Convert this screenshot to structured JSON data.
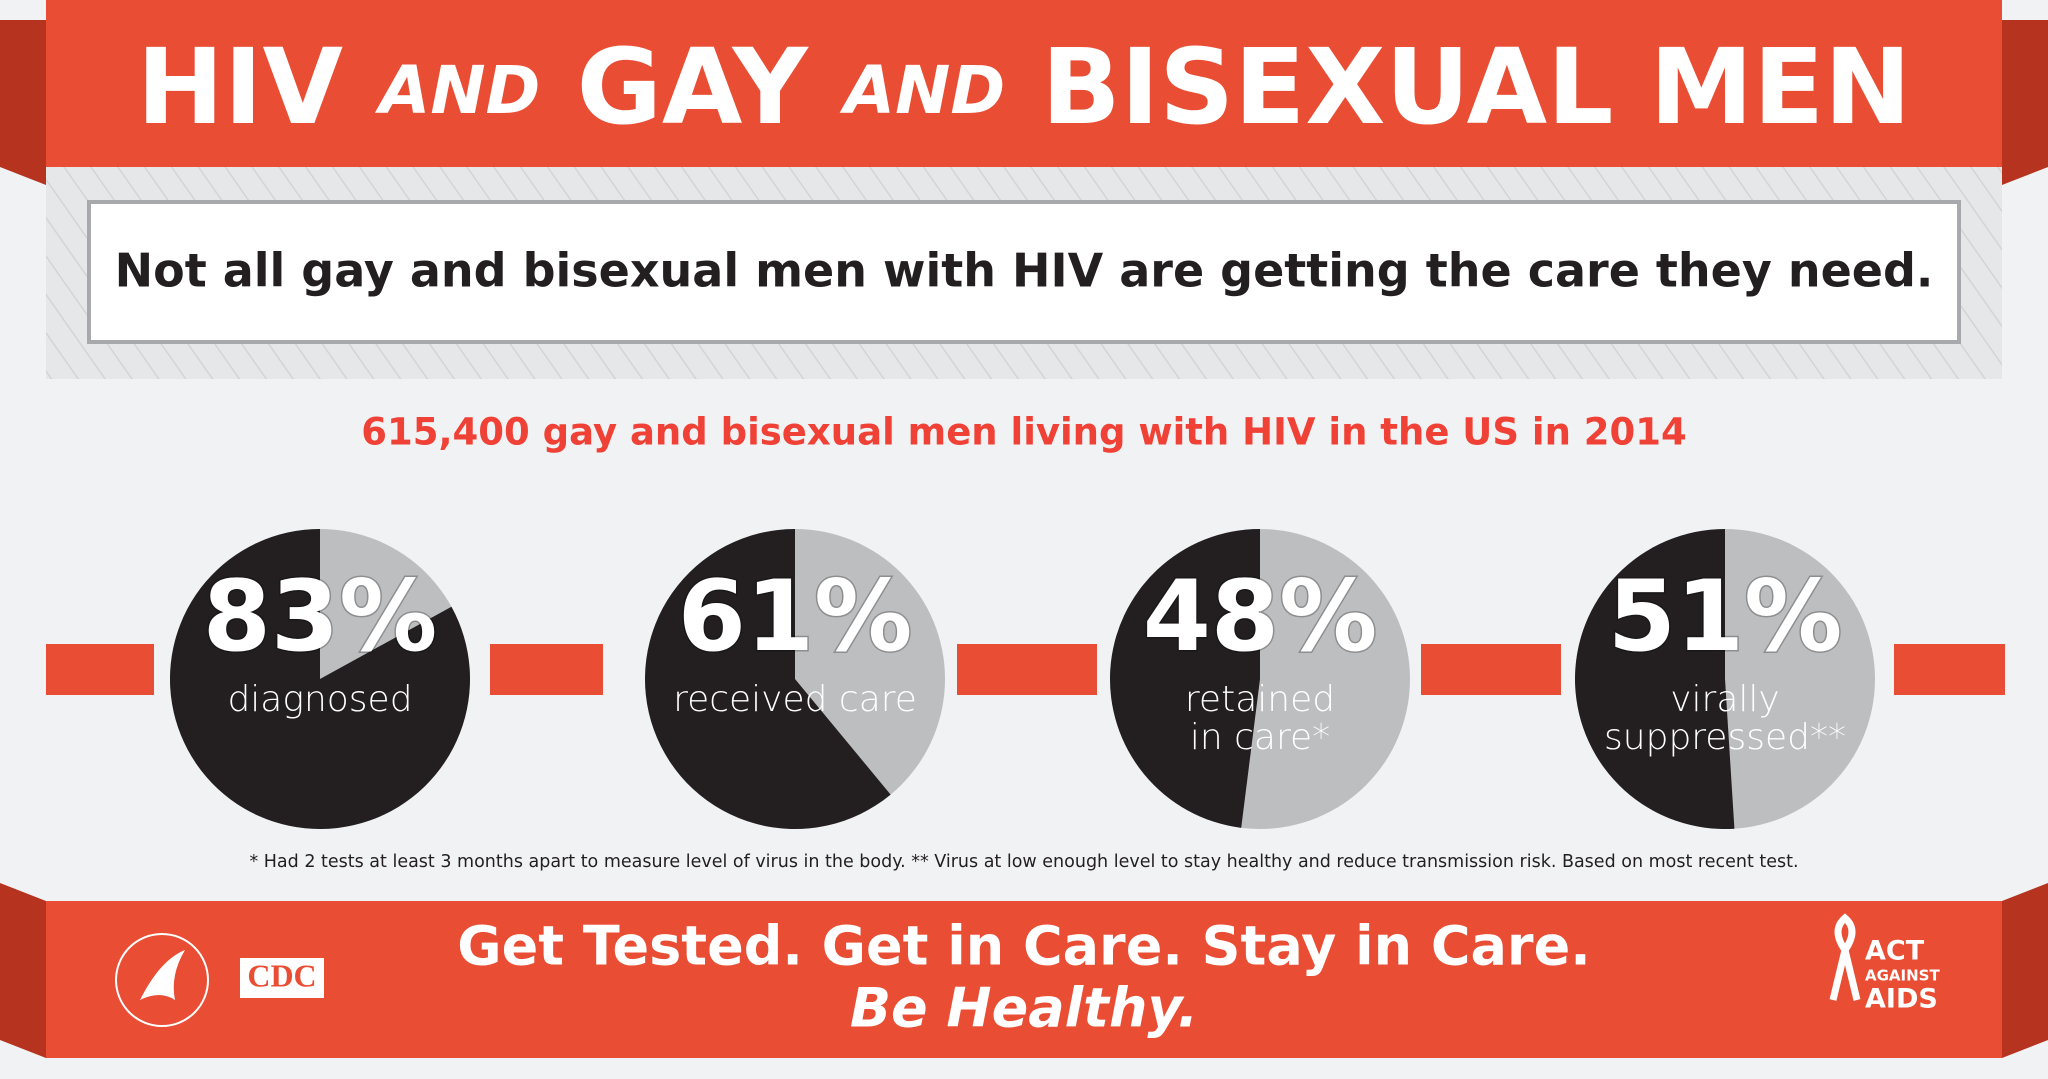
{
  "header": {
    "title_parts": [
      "HIV",
      "AND",
      "GAY",
      "AND",
      "BISEXUAL MEN"
    ]
  },
  "subtitle": "Not all gay and bisexual men with HIV are getting the care they need.",
  "stat": "615,400 gay and bisexual men living with HIV in the US in 2014",
  "chart_data": [
    {
      "type": "pie",
      "values": [
        83
      ],
      "value_labels": [
        "83%"
      ],
      "label": [
        "diagnosed"
      ],
      "color": "#231f20",
      "rest_color": "#bcbec0"
    },
    {
      "type": "pie",
      "values": [
        61
      ],
      "value_labels": [
        "61%"
      ],
      "label": [
        "received care"
      ],
      "color": "#231f20",
      "rest_color": "#bcbec0"
    },
    {
      "type": "pie",
      "values": [
        48
      ],
      "value_labels": [
        "48%"
      ],
      "label": [
        "retained",
        "in care*"
      ],
      "color": "#231f20",
      "rest_color": "#bcbec0"
    },
    {
      "type": "pie",
      "values": [
        51
      ],
      "value_labels": [
        "51%"
      ],
      "label": [
        "virally",
        "suppressed**"
      ],
      "color": "#231f20",
      "rest_color": "#bcbec0"
    }
  ],
  "footnote": "* Had 2 tests at least 3 months apart to measure level of virus in the body. ** Virus at low enough level to stay healthy and reduce transmission risk. Based on most recent test.",
  "footer": {
    "line1": "Get Tested. Get in Care. Stay in Care.",
    "line2": "Be Healthy.",
    "cdc": "CDC",
    "act": [
      "ACT",
      "AGAINST",
      "AIDS"
    ]
  }
}
